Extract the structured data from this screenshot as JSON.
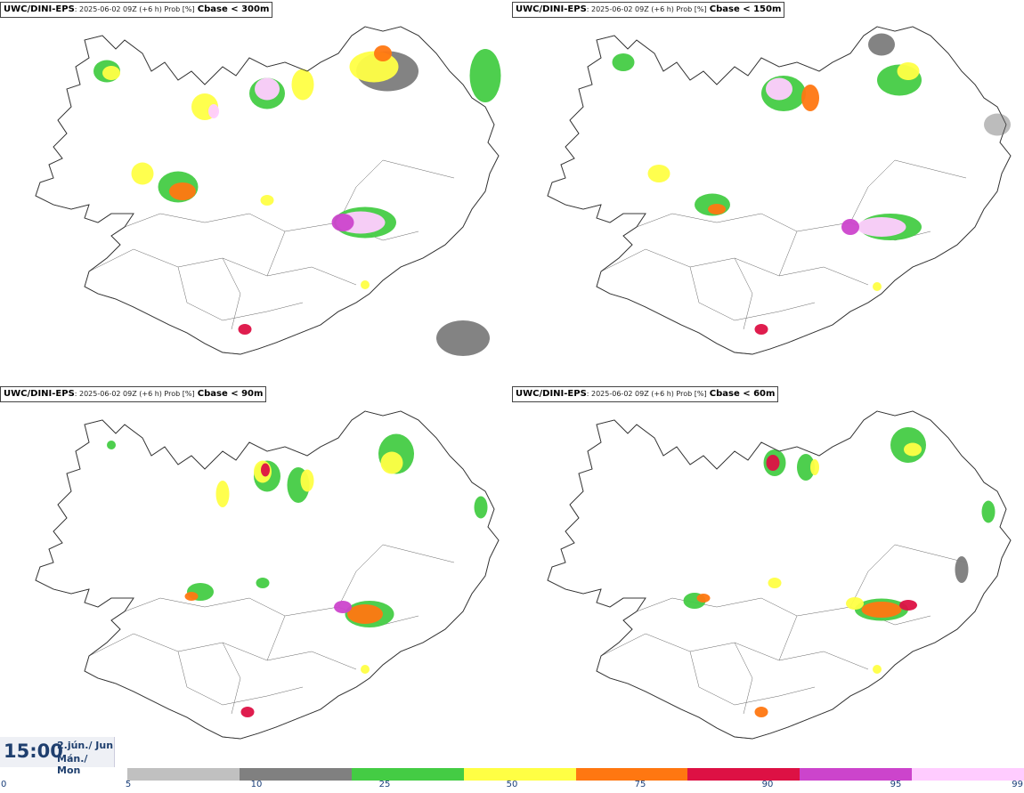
{
  "panels": [
    {
      "source": "UWC/DINI-EPS",
      "meta": ": 2025-06-02 09Z (+6 h) Prob [%]",
      "threshold": "Cbase < 300m"
    },
    {
      "source": "UWC/DINI-EPS",
      "meta": ": 2025-06-02 09Z (+6 h) Prob [%]",
      "threshold": "Cbase < 150m"
    },
    {
      "source": "UWC/DINI-EPS",
      "meta": ": 2025-06-02 09Z (+6 h) Prob [%]",
      "threshold": "Cbase < 90m"
    },
    {
      "source": "UWC/DINI-EPS",
      "meta": ": 2025-06-02 09Z (+6 h) Prob [%]",
      "threshold": "Cbase < 60m"
    }
  ],
  "time": {
    "clock": "15:00",
    "date_line": "2.jún./ Jun",
    "day_line": "Mán./ Mon"
  },
  "legend": {
    "ticks": [
      "0",
      "5",
      "10",
      "25",
      "50",
      "75",
      "90",
      "95",
      "99"
    ],
    "colors": [
      "#c0c0c0",
      "#808080",
      "#44cc44",
      "#ffff44",
      "#ff7711",
      "#dd1144",
      "#cc44cc",
      "#ffccff"
    ]
  }
}
